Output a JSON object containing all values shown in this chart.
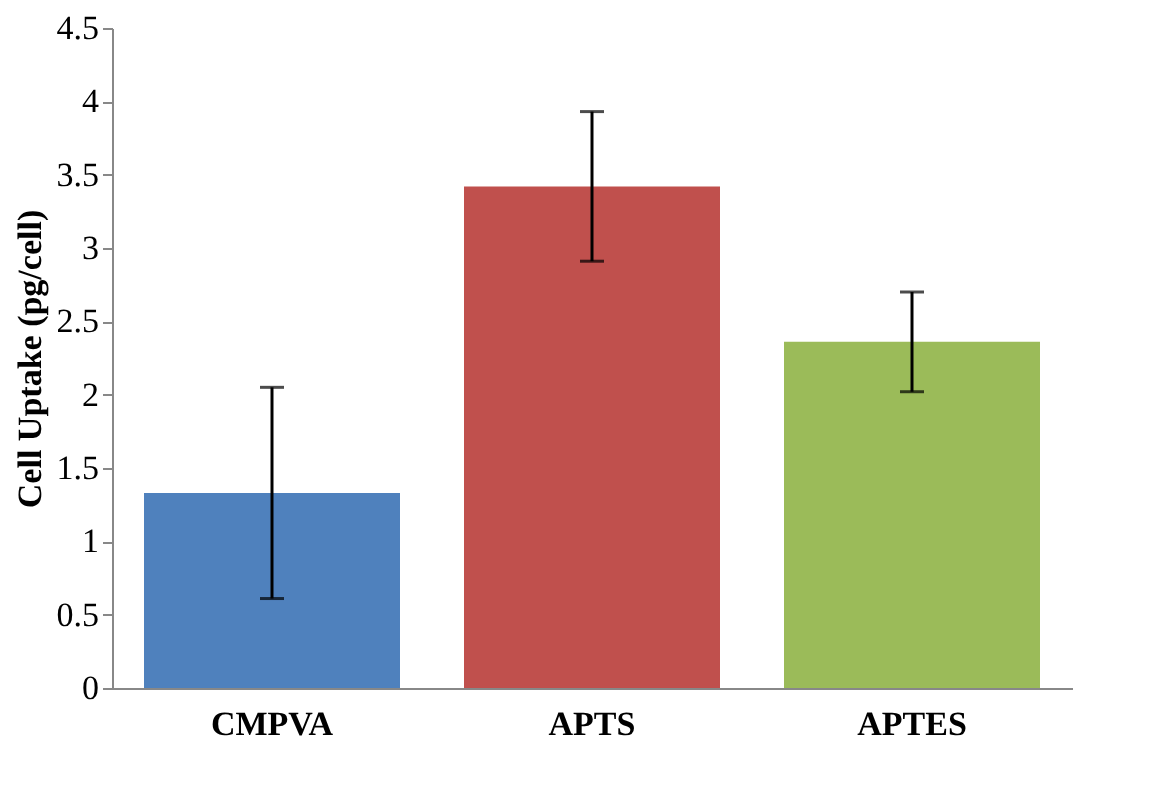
{
  "chart_data": {
    "type": "bar",
    "ylabel": "Cell Uptake (pg/cell)",
    "categories": [
      "CMPVA",
      "APTS",
      "APTES"
    ],
    "values": [
      1.33,
      3.42,
      2.36
    ],
    "colors": [
      "#4f81bd",
      "#c0504d",
      "#9bbb59"
    ],
    "errors": [
      0.72,
      0.51,
      0.34
    ],
    "ylim": [
      0,
      4.5
    ],
    "yticks": [
      0,
      0.5,
      1,
      1.5,
      2,
      2.5,
      3,
      3.5,
      4,
      4.5
    ],
    "grid": false
  }
}
